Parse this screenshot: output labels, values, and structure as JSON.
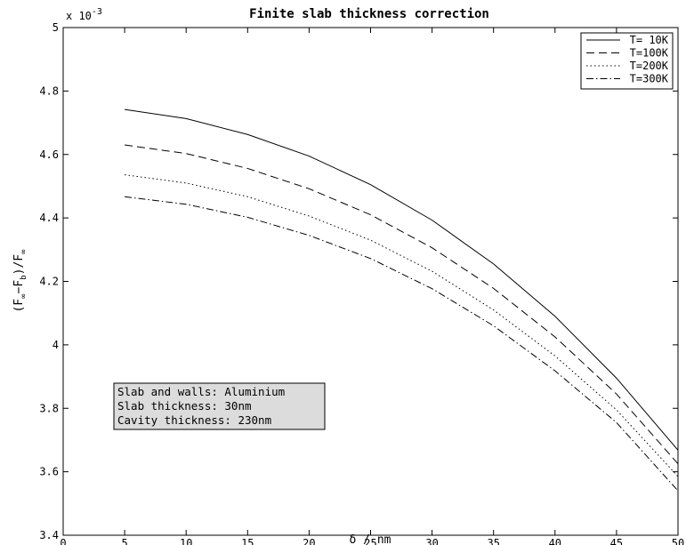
{
  "chart_data": {
    "type": "line",
    "title": "Finite slab thickness correction",
    "xlabel": "δ / nm",
    "ylabel": "(F∞−Fb)/F∞",
    "y_exponent_label": "x 10",
    "y_exponent_power": "-3",
    "xlim": [
      0,
      50
    ],
    "ylim": [
      3.4,
      5.0
    ],
    "x_ticks": [
      "0",
      "5",
      "10",
      "15",
      "20",
      "25",
      "30",
      "35",
      "40",
      "45",
      "50"
    ],
    "y_ticks": [
      "3.4",
      "3.6",
      "3.8",
      "4",
      "4.2",
      "4.4",
      "4.6",
      "4.8",
      "5"
    ],
    "x": [
      5,
      10,
      15,
      20,
      25,
      30,
      35,
      40,
      45,
      50
    ],
    "series": [
      {
        "name": "T= 10K",
        "dash": "solid",
        "values": [
          4.742,
          4.713,
          4.663,
          4.595,
          4.505,
          4.393,
          4.255,
          4.09,
          3.895,
          3.668
        ]
      },
      {
        "name": "T=100K",
        "dash": "dashed",
        "values": [
          4.63,
          4.603,
          4.556,
          4.492,
          4.41,
          4.306,
          4.178,
          4.025,
          3.845,
          3.625
        ]
      },
      {
        "name": "T=200K",
        "dash": "dotted",
        "values": [
          4.536,
          4.51,
          4.467,
          4.406,
          4.33,
          4.232,
          4.11,
          3.965,
          3.795,
          3.585
        ]
      },
      {
        "name": "T=300K",
        "dash": "dashdot",
        "values": [
          4.467,
          4.443,
          4.402,
          4.345,
          4.272,
          4.177,
          4.06,
          3.918,
          3.755,
          3.54
        ]
      }
    ],
    "legend_position": "top-right",
    "grid": false,
    "annotation": {
      "lines": [
        "Slab and walls: Aluminium",
        "Slab thickness: 30nm",
        "Cavity thickness: 230nm"
      ],
      "background": "#dcdcdc"
    }
  }
}
